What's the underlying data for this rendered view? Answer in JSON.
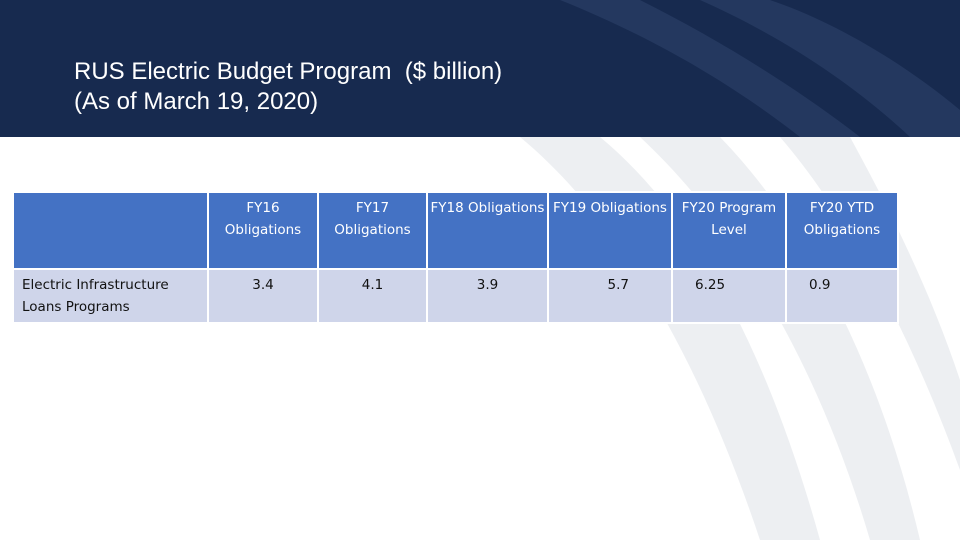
{
  "slide": {
    "title_line1": "RUS Electric Budget Program  ($ billion)",
    "title_line2": "(As of March 19, 2020)",
    "accent_color": "#172a4f",
    "table_header_color": "#4472c4",
    "table_body_color": "#cfd5ea"
  },
  "table": {
    "headers": [
      "",
      "FY16 Obligations",
      "FY17 Obligations",
      "FY18 Obligations",
      "FY19 Obligations",
      "FY20 Program Level",
      "FY20 YTD Obligations"
    ],
    "rows": [
      {
        "label": "Electric Infrastructure Loans Programs",
        "values": [
          "3.4",
          "4.1",
          "3.9",
          "5.7",
          "6.25",
          "0.9"
        ]
      }
    ]
  }
}
